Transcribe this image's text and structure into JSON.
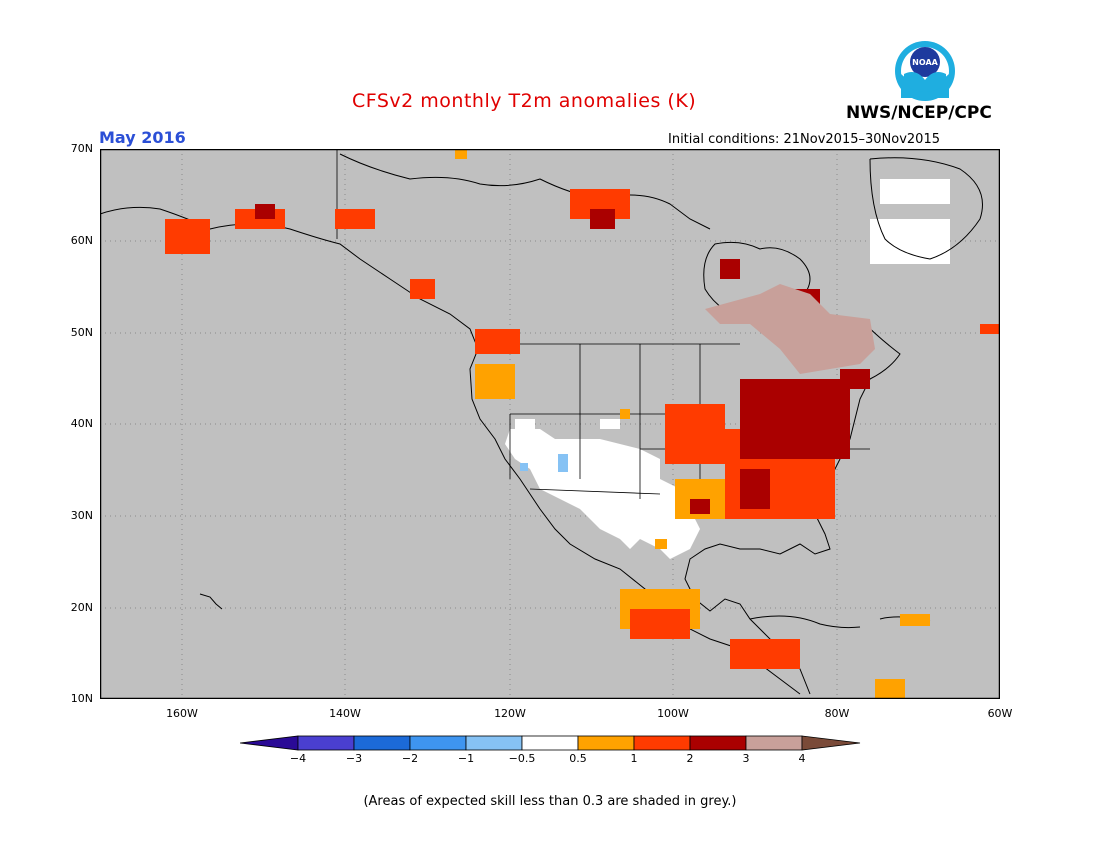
{
  "header": {
    "title": "CFSv2 monthly T2m anomalies (K)",
    "month": "May 2016",
    "initial_conditions": "Initial conditions: 21Nov2015–30Nov2015",
    "agency": "NWS/NCEP/CPC",
    "logo_text": "NOAA"
  },
  "map": {
    "lat_labels": [
      "70N",
      "60N",
      "50N",
      "40N",
      "30N",
      "20N",
      "10N"
    ],
    "lon_labels": [
      "160W",
      "140W",
      "120W",
      "100W",
      "80W",
      "60W"
    ],
    "extent": {
      "lon": [
        -172,
        -60
      ],
      "lat": [
        10,
        70
      ]
    },
    "background_color": "#c0c0c0"
  },
  "colorbar": {
    "labels": [
      "−4",
      "−3",
      "−2",
      "−1",
      "−0.5",
      "0.5",
      "1",
      "2",
      "3",
      "4"
    ],
    "colors": [
      "#2a0a96",
      "#4a3fd0",
      "#1c6ad8",
      "#3e95f0",
      "#86c2f4",
      "#ffffff",
      "#ffa200",
      "#ff3b00",
      "#aa0000",
      "#c8a09a",
      "#7a4a38"
    ]
  },
  "footnote": "(Areas of expected skill less than 0.3 are shaded in grey.)"
}
